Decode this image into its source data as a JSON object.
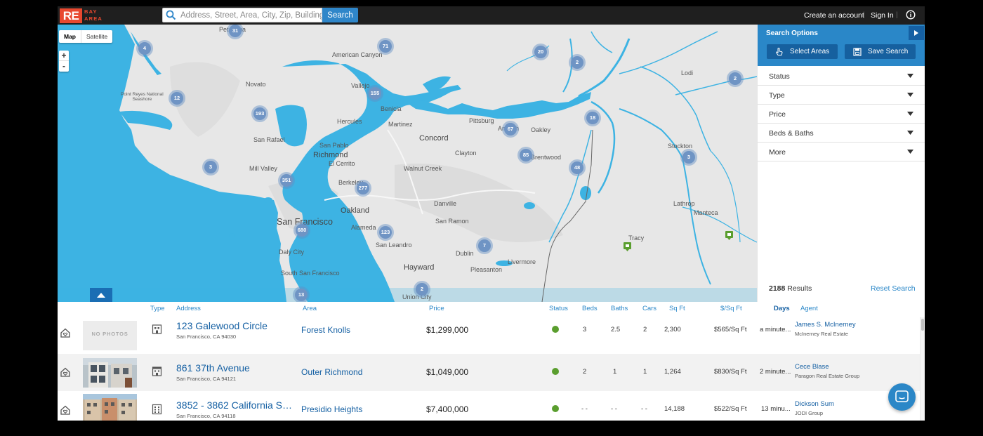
{
  "brand": {
    "logo": "RE",
    "sub_line1": "BAY",
    "sub_line2": "AREA",
    "accent": "#e8482f"
  },
  "search": {
    "placeholder": "Address, Street, Area, City, Zip, Building",
    "button": "Search",
    "icon": "search-icon"
  },
  "topnav": {
    "create_account": "Create an account",
    "sign_in": "Sign In",
    "info_icon": "info-icon"
  },
  "map": {
    "toggle_map": "Map",
    "toggle_satellite": "Satellite",
    "zoom_in": "+",
    "zoom_out": "-",
    "water_color": "#3db3e3",
    "land_color": "#e7e7e7",
    "clusters": [
      "31",
      "4",
      "71",
      "20",
      "2",
      "2",
      "12",
      "155",
      "193",
      "67",
      "18",
      "85",
      "3",
      "48",
      "3",
      "351",
      "277",
      "680",
      "123",
      "7",
      "13",
      "2"
    ],
    "cities": {
      "petaluma": "Petaluma",
      "american_canyon": "American Canyon",
      "lodi": "Lodi",
      "novato": "Novato",
      "vallejo": "Vallejo",
      "benicia": "Benicia",
      "point_reyes_1": "Point Reyes National",
      "point_reyes_2": "Seashore",
      "hercules": "Hercules",
      "martinez": "Martinez",
      "pittsburg": "Pittsburg",
      "antioch": "Antioch",
      "oakley": "Oakley",
      "san_rafael": "San Rafael",
      "san_pablo": "San Pablo",
      "concord": "Concord",
      "richmond": "Richmond",
      "clayton": "Clayton",
      "brentwood": "Brentwood",
      "stockton": "Stockton",
      "el_cerrito": "El Cerrito",
      "mill_valley": "Mill Valley",
      "walnut_creek": "Walnut Creek",
      "berkeley": "Berkeley",
      "lathrop": "Lathrop",
      "danville": "Danville",
      "oakland": "Oakland",
      "manteca": "Manteca",
      "san_francisco": "San Francisco",
      "san_ramon": "San Ramon",
      "alameda": "Alameda",
      "tracy": "Tracy",
      "san_leandro": "San Leandro",
      "daly_city": "Daly City",
      "dublin": "Dublin",
      "livermore": "Livermore",
      "pleasanton": "Pleasanton",
      "hayward": "Hayward",
      "south_san_francisco": "South San Francisco",
      "union_city": "Union City"
    }
  },
  "panel": {
    "title": "Search Options",
    "select_areas": "Select Areas",
    "save_search": "Save Search",
    "filters": [
      "Status",
      "Type",
      "Price",
      "Beds & Baths",
      "More"
    ],
    "results_count": "2188",
    "results_label": " Results",
    "reset": "Reset Search"
  },
  "table": {
    "columns": {
      "type": "Type",
      "address": "Address",
      "area": "Area",
      "price": "Price",
      "status": "Status",
      "beds": "Beds",
      "baths": "Baths",
      "cars": "Cars",
      "sqft": "Sq Ft",
      "price_sqft": "$/Sq Ft",
      "days": "Days",
      "agent": "Agent"
    },
    "rows": [
      {
        "address": "123 Galewood Circle",
        "city": "San Francisco, CA 94030",
        "area": "Forest Knolls",
        "price": "$1,299,000",
        "beds": "3",
        "baths": "2.5",
        "cars": "2",
        "sqft": "2,300",
        "price_sqft": "$565/Sq Ft",
        "days": "a minute...",
        "agent": "James S. McInerney",
        "company": "McInerney Real Estate",
        "thumb_label": "NO PHOTOS",
        "status_color": "#5a9e2e"
      },
      {
        "address": "861 37th Avenue",
        "city": "San Francisco, CA 94121",
        "area": "Outer Richmond",
        "price": "$1,049,000",
        "beds": "2",
        "baths": "1",
        "cars": "1",
        "sqft": "1,264",
        "price_sqft": "$830/Sq Ft",
        "days": "2 minute...",
        "agent": "Cece Blase",
        "company": "Paragon Real Estate Group",
        "status_color": "#5a9e2e"
      },
      {
        "address": "3852 - 3862 California St...",
        "city": "San Francisco, CA 94118",
        "area": "Presidio Heights",
        "price": "$7,400,000",
        "beds": "- -",
        "baths": "- -",
        "cars": "- -",
        "sqft": "14,188",
        "price_sqft": "$522/Sq Ft",
        "days": "13 minu...",
        "agent": "Dickson Sum",
        "company": "JODI Group",
        "status_color": "#5a9e2e"
      }
    ]
  }
}
